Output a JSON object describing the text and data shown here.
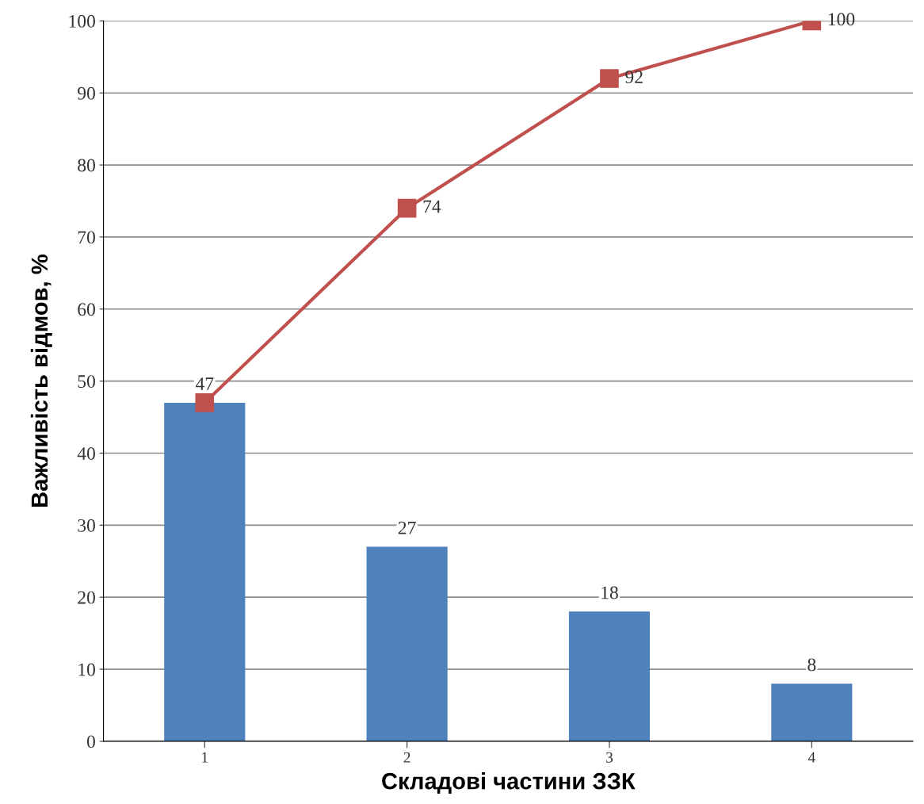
{
  "chart_data": {
    "type": "bar",
    "xlabel": "Складові частини ЗЗК",
    "ylabel": "Важливість відмов, %",
    "categories": [
      "1",
      "2",
      "3",
      "4"
    ],
    "series": [
      {
        "color": "#4f81bd",
        "values": [
          47,
          27,
          18,
          8
        ],
        "value_labels": [
          "47",
          "27",
          "18",
          "8"
        ]
      },
      {
        "type": "line",
        "color": "#c0504d",
        "values": [
          47,
          74,
          92,
          100
        ],
        "value_labels": [
          null,
          "74",
          "92",
          "100"
        ],
        "marker": "square",
        "line_style": "solid"
      }
    ],
    "ylim": [
      0,
      100
    ],
    "yticks": [
      0,
      10,
      20,
      30,
      40,
      50,
      60,
      70,
      80,
      90,
      100
    ],
    "grid": "y",
    "legend": false
  }
}
